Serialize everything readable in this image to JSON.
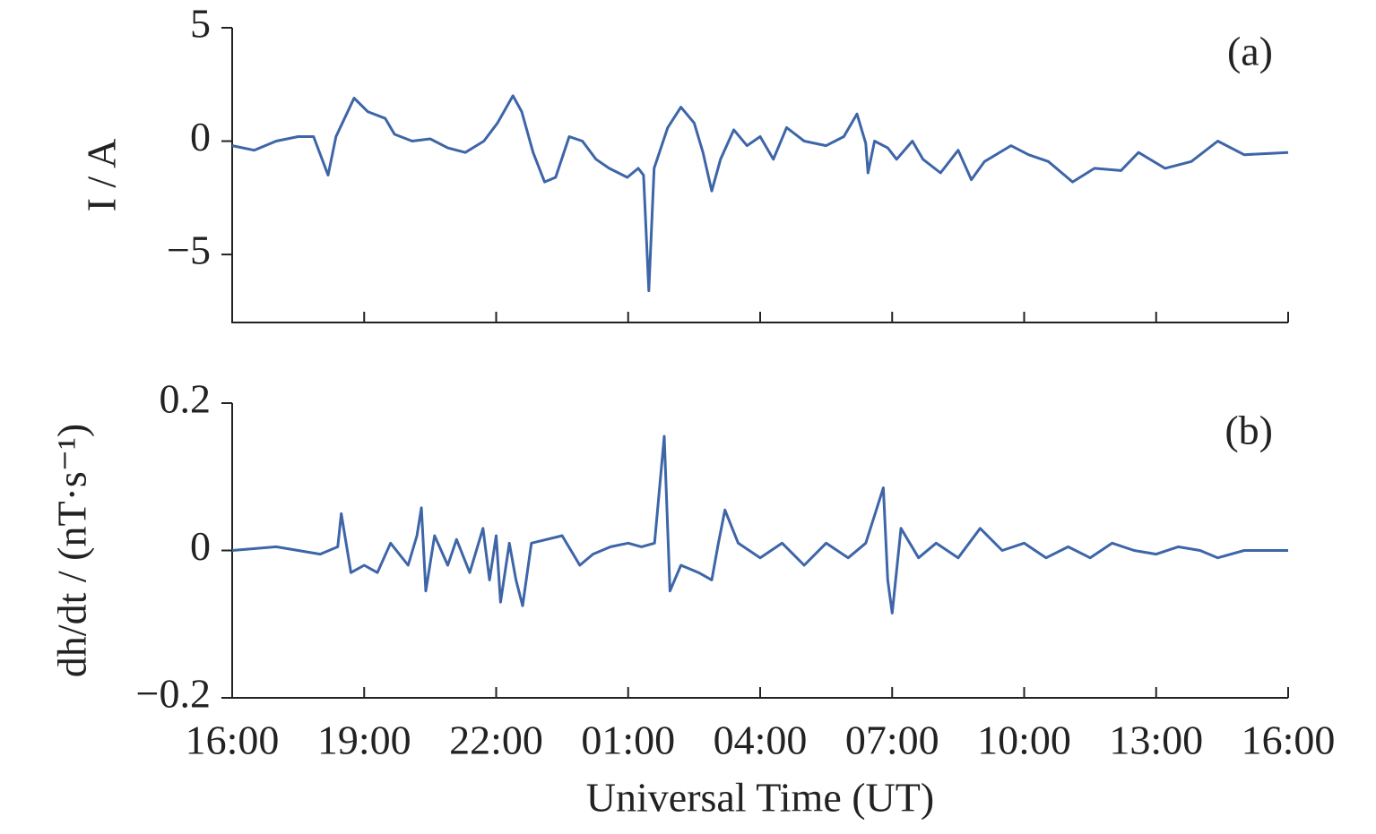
{
  "chart_data": [
    {
      "type": "line",
      "panel_label": "(a)",
      "ylabel": "I / A",
      "color": "#3d65a8",
      "xlim": [
        0,
        24
      ],
      "xticks": [
        0,
        3,
        6,
        9,
        12,
        15,
        18,
        21,
        24
      ],
      "ylim": [
        -8,
        5
      ],
      "yticks": [
        5,
        0,
        {
          "value": -5,
          "label": "−5"
        }
      ],
      "x": [
        0,
        0.5,
        1,
        1.5,
        1.85,
        2.18,
        2.36,
        2.77,
        3.08,
        3.48,
        3.69,
        4.09,
        4.5,
        4.9,
        5.3,
        5.72,
        6.03,
        6.38,
        6.58,
        6.84,
        7.1,
        7.35,
        7.66,
        7.96,
        8.27,
        8.57,
        8.98,
        9.23,
        9.35,
        9.47,
        9.59,
        9.9,
        10.2,
        10.5,
        10.7,
        10.9,
        11.1,
        11.4,
        11.7,
        12.0,
        12.3,
        12.6,
        13.0,
        13.5,
        13.9,
        14.2,
        14.4,
        14.45,
        14.6,
        14.9,
        15.1,
        15.46,
        15.7,
        16.1,
        16.5,
        16.8,
        17.1,
        17.7,
        18.1,
        18.55,
        19.1,
        19.6,
        20.2,
        20.6,
        21.2,
        21.8,
        22.4,
        23.0,
        24
      ],
      "values": [
        -0.2,
        -0.4,
        0,
        0.2,
        0.2,
        -1.5,
        0.2,
        1.9,
        1.3,
        1.0,
        0.3,
        0,
        0.1,
        -0.3,
        -0.5,
        0,
        0.8,
        2.0,
        1.3,
        -0.5,
        -1.8,
        -1.6,
        0.2,
        0,
        -0.8,
        -1.2,
        -1.6,
        -1.2,
        -1.5,
        -6.6,
        -1.2,
        0.6,
        1.5,
        0.8,
        -0.5,
        -2.2,
        -0.8,
        0.5,
        -0.2,
        0.2,
        -0.8,
        0.6,
        0,
        -0.2,
        0.2,
        1.2,
        -0.1,
        -1.4,
        0,
        -0.3,
        -0.8,
        0,
        -0.8,
        -1.4,
        -0.4,
        -1.7,
        -0.9,
        -0.2,
        -0.6,
        -0.9,
        -1.8,
        -1.2,
        -1.3,
        -0.5,
        -1.2,
        -0.9,
        0.0,
        -0.6,
        -0.5
      ]
    },
    {
      "type": "line",
      "panel_label": "(b)",
      "ylabel": "dh/dt / (nT·s⁻¹)",
      "xlabel": "Universal Time (UT)",
      "color": "#3d65a8",
      "xlim": [
        0,
        24
      ],
      "xticks": [
        {
          "value": 0,
          "label": "16:00"
        },
        {
          "value": 3,
          "label": "19:00"
        },
        {
          "value": 6,
          "label": "22:00"
        },
        {
          "value": 9,
          "label": "01:00"
        },
        {
          "value": 12,
          "label": "04:00"
        },
        {
          "value": 15,
          "label": "07:00"
        },
        {
          "value": 18,
          "label": "10:00"
        },
        {
          "value": 21,
          "label": "13:00"
        },
        {
          "value": 24,
          "label": "16:00"
        }
      ],
      "ylim": [
        -0.2,
        0.2
      ],
      "yticks": [
        0.2,
        0,
        {
          "value": -0.2,
          "label": "−0.2"
        }
      ],
      "x": [
        0,
        1,
        2,
        2.4,
        2.48,
        2.7,
        3,
        3.3,
        3.6,
        4,
        4.2,
        4.3,
        4.4,
        4.6,
        4.9,
        5.1,
        5.4,
        5.7,
        5.85,
        6.0,
        6.1,
        6.3,
        6.45,
        6.6,
        6.8,
        7.5,
        7.9,
        8.2,
        8.6,
        9,
        9.3,
        9.6,
        9.82,
        9.95,
        10.2,
        10.6,
        10.9,
        11.05,
        11.2,
        11.5,
        12,
        12.5,
        13,
        13.5,
        14,
        14.4,
        14.8,
        14.9,
        15.0,
        15.2,
        15.6,
        16,
        16.5,
        17,
        17.5,
        18,
        18.5,
        19,
        19.5,
        20,
        20.5,
        21,
        21.5,
        22,
        22.4,
        23,
        24
      ],
      "values": [
        0,
        0.005,
        -0.005,
        0.005,
        0.05,
        -0.03,
        -0.02,
        -0.03,
        0.01,
        -0.02,
        0.02,
        0.058,
        -0.055,
        0.02,
        -0.02,
        0.015,
        -0.03,
        0.03,
        -0.04,
        0.02,
        -0.07,
        0.01,
        -0.04,
        -0.075,
        0.01,
        0.02,
        -0.02,
        -0.005,
        0.005,
        0.01,
        0.005,
        0.01,
        0.155,
        -0.055,
        -0.02,
        -0.03,
        -0.04,
        0.01,
        0.055,
        0.01,
        -0.01,
        0.01,
        -0.02,
        0.01,
        -0.01,
        0.01,
        0.085,
        -0.04,
        -0.085,
        0.03,
        -0.01,
        0.01,
        -0.01,
        0.03,
        0,
        0.01,
        -0.01,
        0.005,
        -0.01,
        0.01,
        0,
        -0.005,
        0.005,
        0,
        -0.01,
        0,
        0
      ]
    }
  ]
}
